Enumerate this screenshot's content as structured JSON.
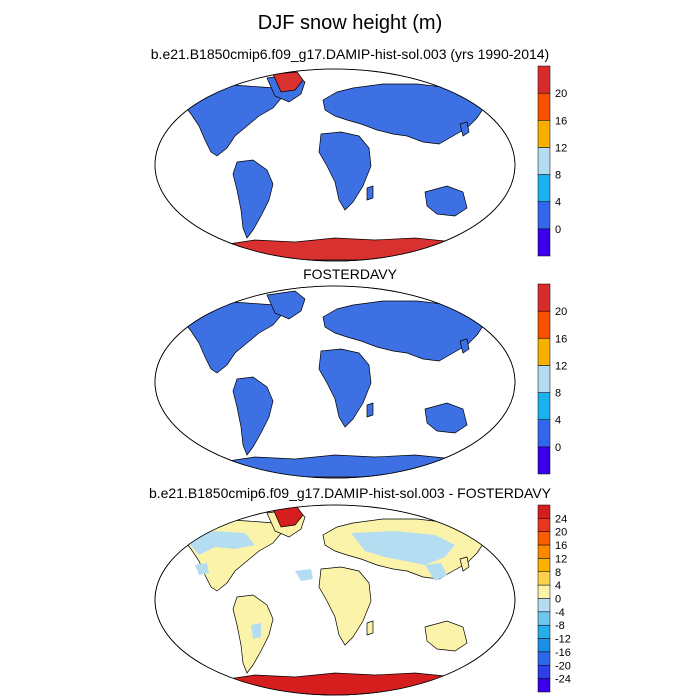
{
  "title": "DJF snow height (m)",
  "panels": [
    {
      "title": "b.e21.B1850cmip6.f09_g17.DAMIP-hist-sol.003 (yrs 1990-2014)",
      "colorbar": {
        "labels": [
          "0",
          "4",
          "8",
          "12",
          "16",
          "20"
        ],
        "colors": [
          "#3a00ee",
          "#3366ee",
          "#19b1ee",
          "#b3dcf2",
          "#f7b000",
          "#f75000",
          "#d92b2b"
        ]
      }
    },
    {
      "title": "FOSTERDAVY",
      "colorbar": {
        "labels": [
          "0",
          "4",
          "8",
          "12",
          "16",
          "20"
        ],
        "colors": [
          "#3a00ee",
          "#3366ee",
          "#19b1ee",
          "#b3dcf2",
          "#f7b000",
          "#f75000",
          "#d92b2b"
        ]
      }
    },
    {
      "title": "b.e21.B1850cmip6.f09_g17.DAMIP-hist-sol.003 - FOSTERDAVY",
      "colorbar": {
        "labels": [
          "24",
          "20",
          "16",
          "12",
          "8",
          "4",
          "0",
          "-4",
          "-8",
          "-12",
          "-16",
          "-20",
          "-24"
        ],
        "colors": [
          "#d71e1e",
          "#e8371c",
          "#f75e00",
          "#fb8a00",
          "#fcb000",
          "#fcd24c",
          "#fbf3aa",
          "#b5ddf2",
          "#6ec5ee",
          "#24aeea",
          "#1b8fe6",
          "#2a6ae8",
          "#2d3fe6",
          "#3a00ee"
        ]
      }
    }
  ],
  "fills": {
    "land_snow": "#3d70e3",
    "polar_high": "#d93030",
    "diff_land": "#fbf3aa",
    "diff_neg": "#b5ddf2",
    "diff_pos_high": "#d71e1e"
  }
}
